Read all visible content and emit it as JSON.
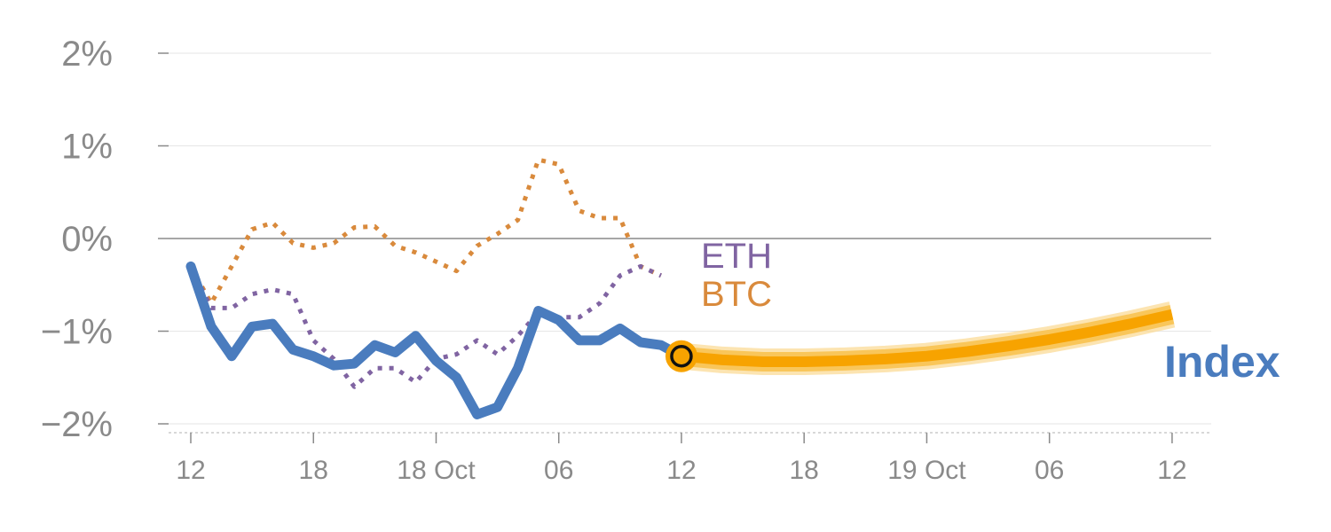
{
  "chart_data": {
    "type": "line",
    "x_ticks": [
      "12",
      "18",
      "18 Oct",
      "06",
      "12",
      "18",
      "19 Oct",
      "06",
      "12"
    ],
    "y_ticks": [
      "2%",
      "1%",
      "0%",
      "−1%",
      "−2%"
    ],
    "ylim": [
      -2,
      2
    ],
    "grid": true,
    "series": [
      {
        "name": "BTC",
        "style": "dotted",
        "color": "#d98a3c",
        "x": [
          0,
          1,
          2,
          3,
          4,
          5,
          6,
          7,
          8,
          9,
          10,
          11,
          12,
          13,
          14,
          15,
          16,
          17,
          18,
          19,
          20,
          21,
          22,
          23
        ],
        "y": [
          -0.3,
          -0.7,
          -0.3,
          0.1,
          0.17,
          -0.05,
          -0.1,
          -0.05,
          0.12,
          0.13,
          -0.08,
          -0.15,
          -0.25,
          -0.35,
          -0.08,
          0.05,
          0.2,
          0.85,
          0.8,
          0.3,
          0.22,
          0.22,
          -0.3,
          -0.4
        ]
      },
      {
        "name": "ETH",
        "style": "dotted",
        "color": "#8064a2",
        "x": [
          0,
          1,
          2,
          3,
          4,
          5,
          6,
          7,
          8,
          9,
          10,
          11,
          12,
          13,
          14,
          15,
          16,
          17,
          18,
          19,
          20,
          21,
          22,
          23
        ],
        "y": [
          -0.3,
          -0.75,
          -0.75,
          -0.6,
          -0.55,
          -0.6,
          -1.1,
          -1.3,
          -1.6,
          -1.4,
          -1.4,
          -1.55,
          -1.3,
          -1.25,
          -1.1,
          -1.25,
          -1.05,
          -0.8,
          -0.85,
          -0.85,
          -0.7,
          -0.4,
          -0.3,
          -0.4
        ]
      },
      {
        "name": "Index",
        "style": "solid",
        "color": "#4a7cbe",
        "x": [
          0,
          1,
          2,
          3,
          4,
          5,
          6,
          7,
          8,
          9,
          10,
          11,
          12,
          13,
          14,
          15,
          16,
          17,
          18,
          19,
          20,
          21,
          22,
          23,
          24
        ],
        "y": [
          -0.3,
          -0.95,
          -1.27,
          -0.95,
          -0.92,
          -1.2,
          -1.27,
          -1.37,
          -1.35,
          -1.15,
          -1.23,
          -1.05,
          -1.32,
          -1.5,
          -1.9,
          -1.82,
          -1.4,
          -0.78,
          -0.88,
          -1.1,
          -1.1,
          -0.97,
          -1.12,
          -1.15,
          -1.27
        ]
      },
      {
        "name": "Index forecast",
        "style": "band",
        "color": "#f7a300",
        "x": [
          24,
          26,
          28,
          30,
          32,
          34,
          36,
          38,
          40,
          42,
          44,
          46,
          48
        ],
        "y": [
          -1.27,
          -1.31,
          -1.33,
          -1.33,
          -1.32,
          -1.3,
          -1.27,
          -1.22,
          -1.16,
          -1.09,
          -1.01,
          -0.92,
          -0.82
        ]
      }
    ],
    "annotations": {
      "eth_label": "ETH",
      "btc_label": "BTC",
      "index_label": "Index"
    },
    "current_point": {
      "x": 24,
      "y": -1.27
    }
  }
}
